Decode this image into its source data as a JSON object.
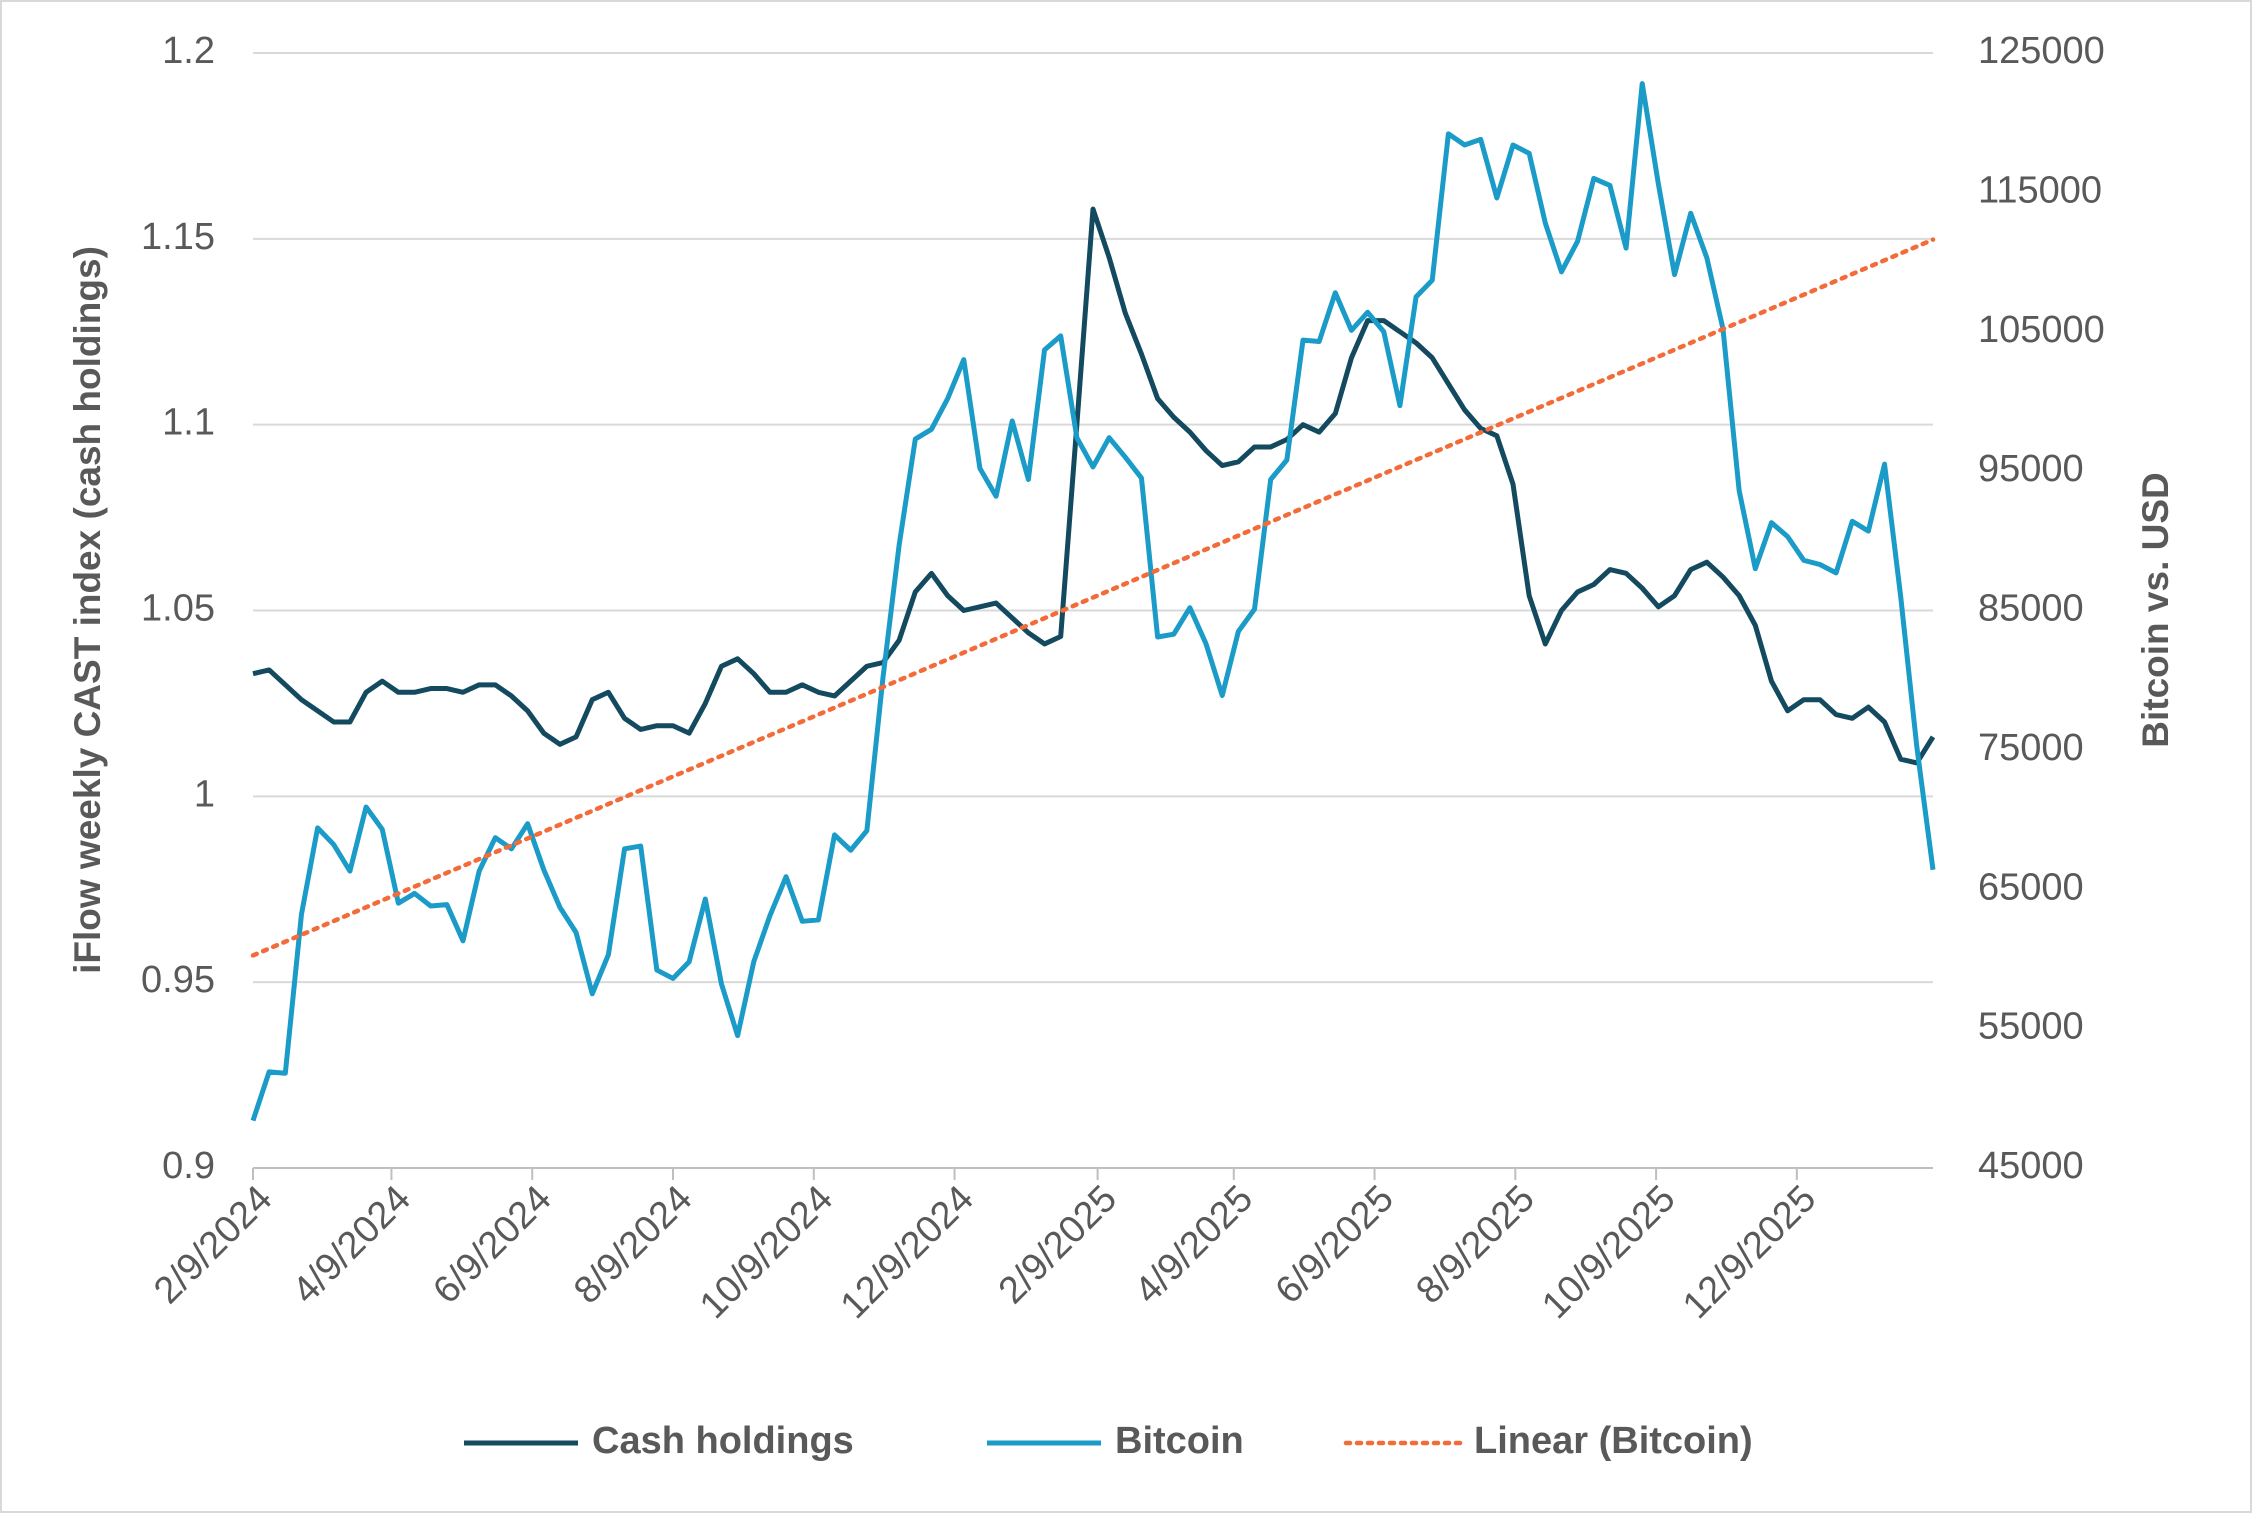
{
  "chart_data": {
    "type": "line",
    "y_label": "iFlow weekly CAST index (cash holdings)",
    "y2_label": "Bitcoin vs. USD",
    "x": [
      "2/9/2024",
      "2/16/2024",
      "2/23/2024",
      "3/1/2024",
      "3/8/2024",
      "3/15/2024",
      "3/22/2024",
      "3/29/2024",
      "4/5/2024",
      "4/12/2024",
      "4/19/2024",
      "4/26/2024",
      "5/3/2024",
      "5/10/2024",
      "5/17/2024",
      "5/24/2024",
      "5/31/2024",
      "6/7/2024",
      "6/14/2024",
      "6/21/2024",
      "6/28/2024",
      "7/5/2024",
      "7/12/2024",
      "7/19/2024",
      "7/26/2024",
      "8/2/2024",
      "8/9/2024",
      "8/16/2024",
      "8/23/2024",
      "8/30/2024",
      "9/6/2024",
      "9/13/2024",
      "9/20/2024",
      "9/27/2024",
      "10/4/2024",
      "10/11/2024",
      "10/18/2024",
      "10/25/2024",
      "11/1/2024",
      "11/8/2024",
      "11/15/2024",
      "11/22/2024",
      "11/29/2024",
      "12/6/2024",
      "12/13/2024",
      "12/20/2024",
      "12/27/2024",
      "1/3/2025",
      "1/10/2025",
      "1/17/2025",
      "1/24/2025",
      "1/31/2025",
      "2/7/2025",
      "2/14/2025",
      "2/21/2025",
      "2/28/2025",
      "3/7/2025",
      "3/14/2025",
      "3/21/2025",
      "3/28/2025",
      "4/4/2025",
      "4/11/2025",
      "4/18/2025",
      "4/25/2025",
      "5/2/2025",
      "5/9/2025",
      "5/16/2025",
      "5/23/2025",
      "5/30/2025",
      "6/6/2025",
      "6/13/2025",
      "6/20/2025",
      "6/27/2025",
      "7/4/2025",
      "7/11/2025",
      "7/18/2025",
      "7/25/2025",
      "8/1/2025",
      "8/8/2025",
      "8/15/2025",
      "8/22/2025",
      "8/29/2025",
      "9/5/2025",
      "9/12/2025",
      "9/19/2025",
      "9/26/2025",
      "10/3/2025",
      "10/10/2025",
      "10/17/2025",
      "10/24/2025",
      "10/31/2025",
      "11/7/2025",
      "11/14/2025",
      "11/21/2025",
      "11/28/2025",
      "12/5/2025",
      "12/12/2025",
      "12/19/2025",
      "12/26/2025",
      "1/2/2026",
      "1/9/2026",
      "1/16/2026",
      "1/23/2026",
      "1/30/2026",
      "2/6/2026"
    ],
    "xlim": [
      "2/9/2024",
      "2/6/2026"
    ],
    "xticks": [
      "2/9/2024",
      "4/9/2024",
      "6/9/2024",
      "8/9/2024",
      "10/9/2024",
      "12/9/2024",
      "2/9/2025",
      "4/9/2025",
      "6/9/2025",
      "8/9/2025",
      "10/9/2025",
      "12/9/2025"
    ],
    "ylim": [
      0.9,
      1.2
    ],
    "yticks": [
      0.9,
      0.95,
      1,
      1.05,
      1.1,
      1.15,
      1.2
    ],
    "y2lim": [
      45000,
      125000
    ],
    "y2ticks": [
      45000,
      55000,
      65000,
      75000,
      85000,
      95000,
      105000,
      115000,
      125000
    ],
    "grid": true,
    "legend": "bottom",
    "series": [
      {
        "name": "Cash holdings",
        "color": "#134a5f",
        "values": [
          1.033,
          1.034,
          1.03,
          1.026,
          1.023,
          1.02,
          1.02,
          1.028,
          1.031,
          1.028,
          1.028,
          1.029,
          1.029,
          1.028,
          1.03,
          1.03,
          1.027,
          1.023,
          1.017,
          1.014,
          1.016,
          1.026,
          1.028,
          1.021,
          1.018,
          1.019,
          1.019,
          1.017,
          1.025,
          1.035,
          1.037,
          1.033,
          1.028,
          1.028,
          1.03,
          1.028,
          1.027,
          1.031,
          1.035,
          1.036,
          1.042,
          1.055,
          1.06,
          1.054,
          1.05,
          1.051,
          1.052,
          1.048,
          1.044,
          1.041,
          1.043,
          1.1,
          1.158,
          1.145,
          1.13,
          1.119,
          1.107,
          1.102,
          1.098,
          1.093,
          1.089,
          1.09,
          1.094,
          1.094,
          1.096,
          1.1,
          1.098,
          1.103,
          1.118,
          1.128,
          1.128,
          1.125,
          1.122,
          1.118,
          1.111,
          1.104,
          1.099,
          1.097,
          1.084,
          1.054,
          1.041,
          1.05,
          1.055,
          1.057,
          1.061,
          1.06,
          1.056,
          1.051,
          1.054,
          1.061,
          1.063,
          1.059,
          1.054,
          1.046,
          1.031,
          1.023,
          1.026,
          1.026,
          1.022,
          1.021,
          1.024,
          1.02,
          1.01,
          1.009,
          1.016
        ]
      },
      {
        "name": "Bitcoin",
        "color": "#1b9bc8",
        "axis": "y2",
        "values": [
          48400,
          51900,
          51800,
          63200,
          69400,
          68200,
          66300,
          70900,
          69300,
          64000,
          64700,
          63800,
          63900,
          61300,
          66300,
          68700,
          67900,
          69700,
          66400,
          63700,
          61900,
          57500,
          60300,
          67900,
          68100,
          59200,
          58600,
          59800,
          64300,
          58200,
          54500,
          59800,
          63100,
          65900,
          62700,
          62800,
          68900,
          67800,
          69200,
          80200,
          89700,
          97300,
          98000,
          100200,
          103000,
          95200,
          93200,
          98600,
          94400,
          103700,
          104700,
          97400,
          95300,
          97400,
          96000,
          94500,
          83100,
          83300,
          85200,
          82600,
          78900,
          83500,
          85100,
          94400,
          95800,
          104400,
          104300,
          107800,
          105100,
          106400,
          105000,
          99700,
          107500,
          108700,
          119200,
          118400,
          118800,
          114600,
          118400,
          117800,
          112800,
          109300,
          111500,
          116000,
          115500,
          111000,
          122800,
          115600,
          109100,
          113500,
          110300,
          105200,
          93600,
          88000,
          91300,
          90300,
          88600,
          88300,
          87700,
          91400,
          90700,
          95500,
          86000,
          75200,
          66400
        ]
      }
    ],
    "trendline": {
      "name": "Linear (Bitcoin)",
      "color": "#f26b38"
    }
  }
}
